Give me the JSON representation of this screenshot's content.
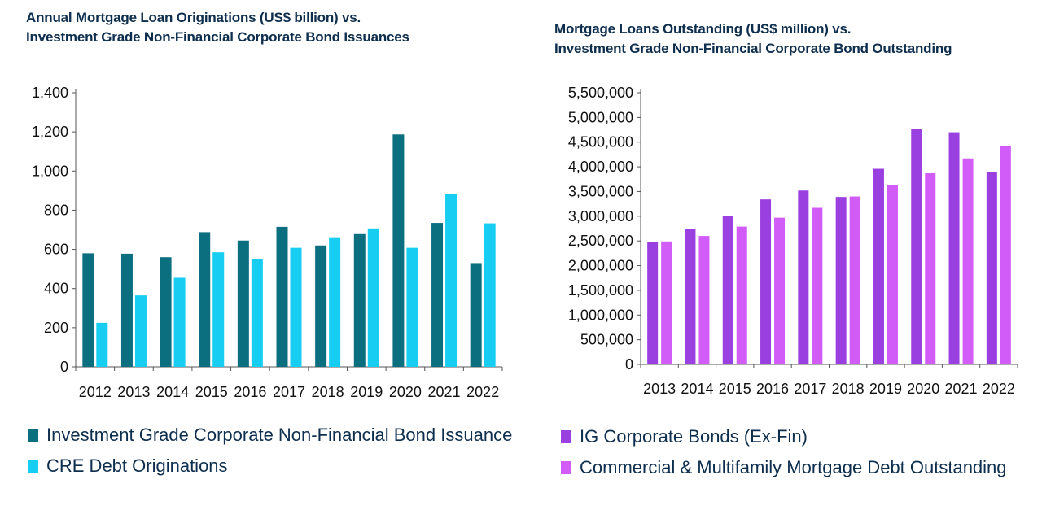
{
  "chart_data": [
    {
      "type": "bar",
      "title_lines": [
        "Annual Mortgage Loan Originations (US$ billion) vs.",
        "Investment Grade Non-Financial Corporate Bond Issuances"
      ],
      "xlabel": "",
      "ylabel": "",
      "categories": [
        "2012",
        "2013",
        "2014",
        "2015",
        "2016",
        "2017",
        "2018",
        "2019",
        "2020",
        "2021",
        "2022"
      ],
      "ylim": [
        0,
        1400
      ],
      "yticks": [
        0,
        200,
        400,
        600,
        800,
        1000,
        1200,
        1400
      ],
      "ytick_labels": [
        "0",
        "200",
        "400",
        "600",
        "800",
        "1,000",
        "1,200",
        "1,400"
      ],
      "grid": false,
      "legend_position": "bottom",
      "series": [
        {
          "name": "Investment Grade Corporate Non-Financial Bond Issuance",
          "color": "#0b6f80",
          "values": [
            580,
            578,
            560,
            688,
            645,
            715,
            620,
            678,
            1187,
            735,
            530
          ]
        },
        {
          "name": "CRE Debt Originations",
          "color": "#18cdf2",
          "values": [
            225,
            365,
            455,
            585,
            550,
            608,
            662,
            707,
            608,
            885,
            733
          ]
        }
      ]
    },
    {
      "type": "bar",
      "title_lines": [
        "Mortgage Loans Outstanding (US$ million) vs.",
        "Investment Grade Non-Financial Corporate Bond Outstanding"
      ],
      "xlabel": "",
      "ylabel": "",
      "categories": [
        "2013",
        "2014",
        "2015",
        "2016",
        "2017",
        "2018",
        "2019",
        "2020",
        "2021",
        "2022"
      ],
      "ylim": [
        0,
        5500000
      ],
      "yticks": [
        0,
        500000,
        1000000,
        1500000,
        2000000,
        2500000,
        3000000,
        3500000,
        4000000,
        4500000,
        5000000,
        5500000
      ],
      "ytick_labels": [
        "0",
        "500,000",
        "1,000,000",
        "1,500,000",
        "2,000,000",
        "2,500,000",
        "3,000,000",
        "3,500,000",
        "4,000,000",
        "4,500,000",
        "5,000,000",
        "5,500,000"
      ],
      "grid": false,
      "legend_position": "bottom",
      "series": [
        {
          "name": "IG Corporate Bonds (Ex-Fin)",
          "color": "#9a40e0",
          "values": [
            2480000,
            2750000,
            3000000,
            3340000,
            3520000,
            3390000,
            3960000,
            4770000,
            4700000,
            3900000
          ]
        },
        {
          "name": "Commercial & Multifamily Mortgage Debt Outstanding",
          "color": "#d25cf8",
          "values": [
            2490000,
            2600000,
            2790000,
            2970000,
            3170000,
            3400000,
            3630000,
            3870000,
            4170000,
            4430000
          ]
        }
      ]
    }
  ]
}
